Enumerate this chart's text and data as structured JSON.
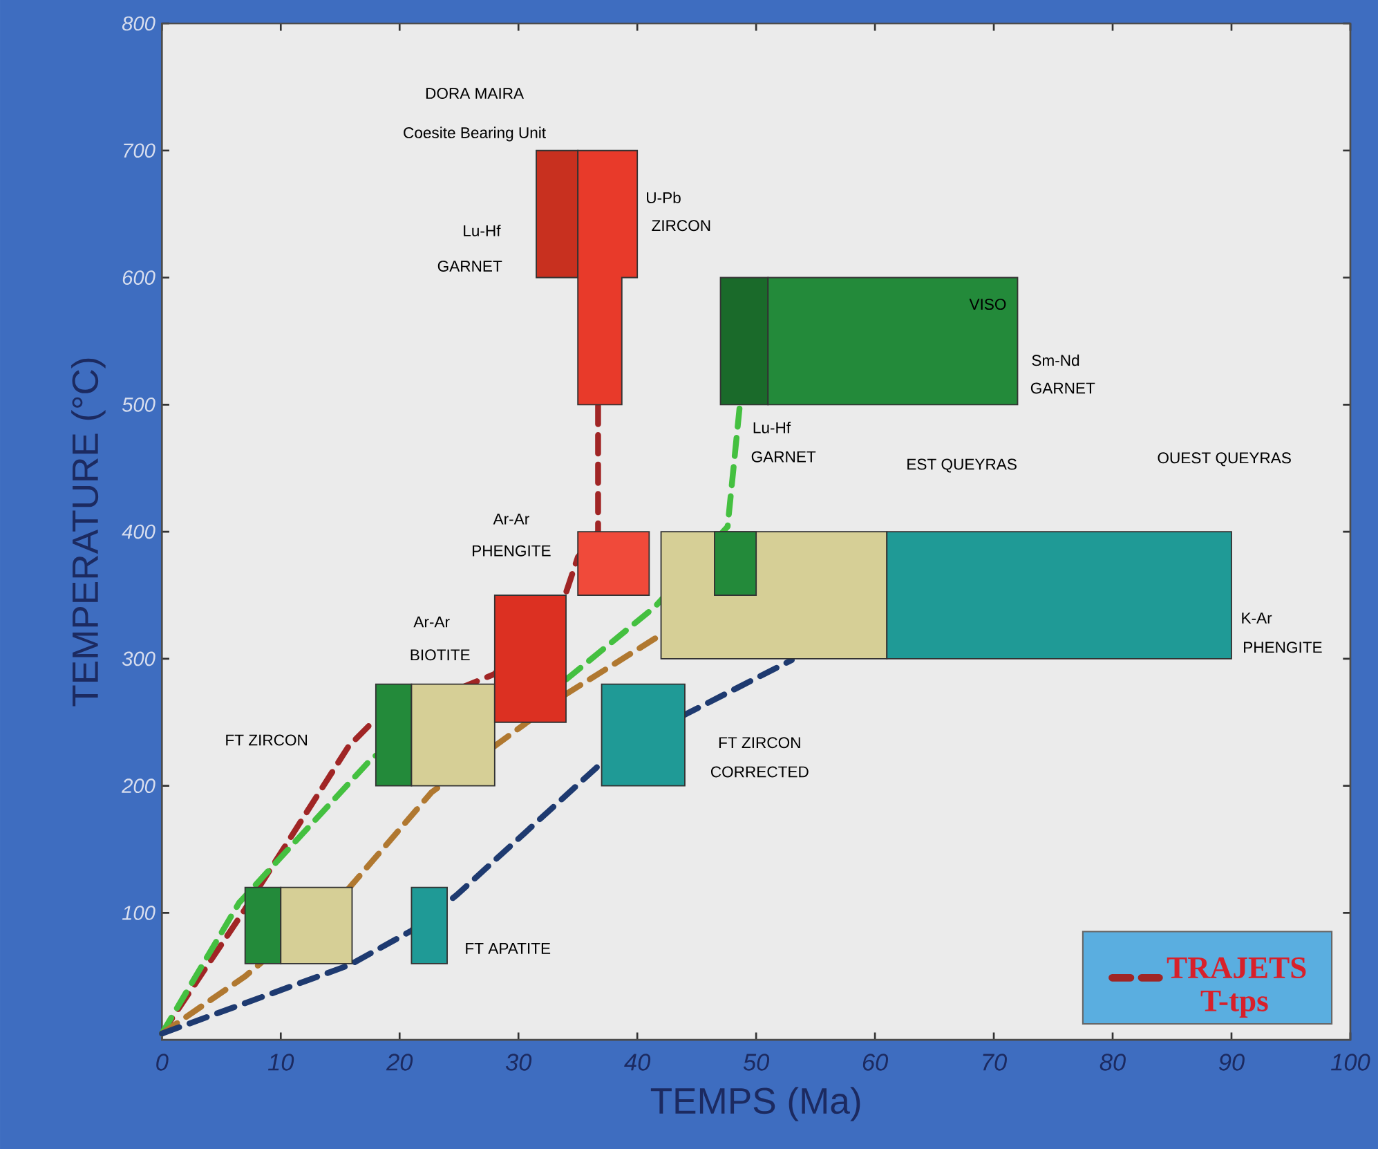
{
  "chart_data": {
    "type": "line",
    "xlabel": "TEMPS (Ma)",
    "ylabel": "TEMPERATURE (°C)",
    "xlim": [
      0,
      100
    ],
    "ylim": [
      0,
      800
    ],
    "xticks": [
      0,
      10,
      20,
      30,
      40,
      50,
      60,
      70,
      80,
      90,
      100
    ],
    "yticks": [
      100,
      200,
      300,
      400,
      500,
      600,
      700,
      800
    ],
    "legend": "bottom right",
    "line_style": "dashed",
    "series": [
      {
        "name": "TRAJETS T-tps",
        "color": "#a02525",
        "x": [
          0,
          7,
          15.7,
          17.5,
          28,
          34,
          35,
          36.7,
          36.7
        ],
        "values": [
          5,
          103,
          231,
          248,
          288,
          352,
          380,
          400,
          500
        ]
      },
      {
        "color": "#44c040",
        "x": [
          0,
          6.5,
          17.8,
          33.8,
          41.5,
          47.6,
          48.6
        ],
        "values": [
          5,
          108,
          223,
          282,
          341,
          404,
          497
        ]
      },
      {
        "color": "#b07830",
        "x": [
          0,
          7,
          15.7,
          22.7,
          33.8,
          41.5
        ],
        "values": [
          5,
          50,
          119,
          195,
          271,
          316
        ]
      },
      {
        "color": "#1e3a70",
        "x": [
          0,
          15.8,
          21,
          24.8,
          37,
          44,
          53
        ],
        "values": [
          5,
          59,
          86,
          114,
          218,
          256,
          299
        ]
      },
      {
        "type": "area",
        "color": "#c8301f",
        "x": [
          31.5,
          35,
          35,
          31.5
        ],
        "values": [
          600,
          600,
          700,
          700
        ]
      },
      {
        "type": "area",
        "color": "#e83a2a",
        "x": [
          35,
          40,
          40,
          38.7,
          38.7,
          35
        ],
        "values": [
          700,
          700,
          600,
          600,
          500,
          500
        ]
      },
      {
        "type": "area",
        "color": "#f04a3a",
        "x": [
          35,
          41,
          41,
          35
        ],
        "values": [
          350,
          350,
          400,
          400
        ]
      },
      {
        "type": "area",
        "color": "#238a3a",
        "x": [
          18,
          21,
          21,
          18
        ],
        "values": [
          200,
          200,
          280,
          280
        ]
      },
      {
        "type": "area",
        "color": "#d6cf96",
        "x": [
          21,
          28,
          28,
          21
        ],
        "values": [
          200,
          200,
          280,
          280
        ]
      },
      {
        "type": "area",
        "color": "#dc3022",
        "x": [
          28,
          34,
          34,
          28
        ],
        "values": [
          250,
          250,
          350,
          350
        ]
      },
      {
        "type": "area",
        "color": "#238a3a",
        "x": [
          7,
          10,
          10,
          7
        ],
        "values": [
          60,
          60,
          120,
          120
        ]
      },
      {
        "type": "area",
        "color": "#d6cf96",
        "x": [
          10,
          16,
          16,
          10
        ],
        "values": [
          60,
          60,
          120,
          120
        ]
      },
      {
        "type": "area",
        "color": "#1f9a96",
        "x": [
          21,
          24,
          24,
          21
        ],
        "values": [
          60,
          60,
          120,
          120
        ]
      },
      {
        "type": "area",
        "color": "#1f9a96",
        "x": [
          37,
          44,
          44,
          37
        ],
        "values": [
          200,
          200,
          280,
          280
        ]
      },
      {
        "type": "area",
        "color": "#d6cf96",
        "x": [
          42,
          61,
          61,
          42
        ],
        "values": [
          300,
          300,
          400,
          400
        ]
      },
      {
        "type": "area",
        "color": "#1f9a96",
        "x": [
          61,
          90,
          90,
          61
        ],
        "values": [
          300,
          300,
          400,
          400
        ]
      },
      {
        "type": "area",
        "color": "#238a3a",
        "x": [
          46.5,
          50,
          50,
          46.5
        ],
        "values": [
          350,
          350,
          400,
          400
        ]
      },
      {
        "type": "area",
        "color": "#1a6a2a",
        "x": [
          47,
          51,
          51,
          47
        ],
        "values": [
          500,
          500,
          600,
          600
        ]
      },
      {
        "type": "area",
        "color": "#238a3a",
        "x": [
          51,
          72,
          72,
          51
        ],
        "values": [
          500,
          500,
          600,
          600
        ]
      }
    ],
    "annotations": [
      "DORA MAIRA",
      "Coesite Bearing Unit",
      "Lu-Hf",
      "GARNET",
      "U-Pb",
      "ZIRCON",
      "VISO",
      "Sm-Nd",
      "GARNET",
      "Lu-Hf",
      "GARNET",
      "EST QUEYRAS",
      "OUEST QUEYRAS",
      "K-Ar",
      "PHENGITE",
      "Ar-Ar",
      "PHENGITE",
      "Ar-Ar",
      "BIOTITE",
      "FT ZIRCON",
      "FT ZIRCON",
      "CORRECTED",
      "FT APATITE"
    ]
  }
}
